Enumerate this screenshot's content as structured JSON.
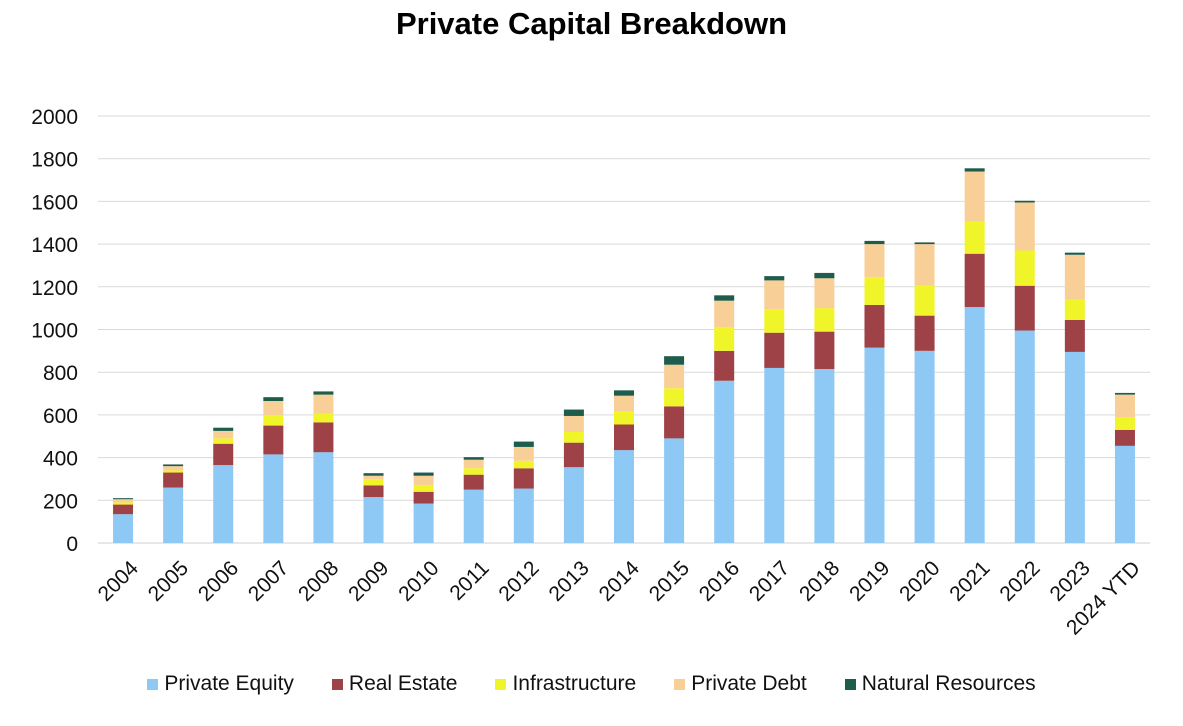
{
  "chart_data": {
    "type": "bar",
    "stacked": true,
    "title": "Private Capital Breakdown",
    "xlabel": "",
    "ylabel": "",
    "ylim": [
      0,
      2000
    ],
    "yticks": [
      "0",
      "200",
      "400",
      "600",
      "800",
      "1000",
      "1200",
      "1400",
      "1600",
      "1800",
      "2000"
    ],
    "grid": true,
    "legend_position": "bottom",
    "categories": [
      "2004",
      "2005",
      "2006",
      "2007",
      "2008",
      "2009",
      "2010",
      "2011",
      "2012",
      "2013",
      "2014",
      "2015",
      "2016",
      "2017",
      "2018",
      "2019",
      "2020",
      "2021",
      "2022",
      "2023",
      "2024 YTD"
    ],
    "series": [
      {
        "name": "Private Equity",
        "color": "#8ec9f5",
        "values": [
          135,
          260,
          365,
          415,
          425,
          215,
          185,
          250,
          255,
          355,
          435,
          490,
          760,
          820,
          815,
          915,
          900,
          1105,
          995,
          895,
          455
        ]
      },
      {
        "name": "Real Estate",
        "color": "#9e4247",
        "values": [
          45,
          70,
          100,
          135,
          140,
          55,
          55,
          70,
          95,
          115,
          120,
          150,
          140,
          165,
          175,
          200,
          165,
          250,
          210,
          150,
          75
        ]
      },
      {
        "name": "Infrastructure",
        "color": "#f0f52a",
        "values": [
          10,
          10,
          25,
          50,
          40,
          30,
          30,
          30,
          35,
          50,
          60,
          85,
          110,
          110,
          110,
          130,
          140,
          150,
          165,
          95,
          60
        ]
      },
      {
        "name": "Private Debt",
        "color": "#f9cf98",
        "values": [
          15,
          20,
          35,
          65,
          90,
          15,
          45,
          40,
          65,
          75,
          75,
          110,
          125,
          135,
          140,
          155,
          195,
          235,
          225,
          210,
          105
        ]
      },
      {
        "name": "Natural Resources",
        "color": "#1e5c4c",
        "values": [
          5,
          8,
          15,
          18,
          15,
          12,
          15,
          12,
          25,
          30,
          25,
          40,
          25,
          20,
          25,
          15,
          8,
          15,
          8,
          10,
          8
        ]
      }
    ]
  }
}
